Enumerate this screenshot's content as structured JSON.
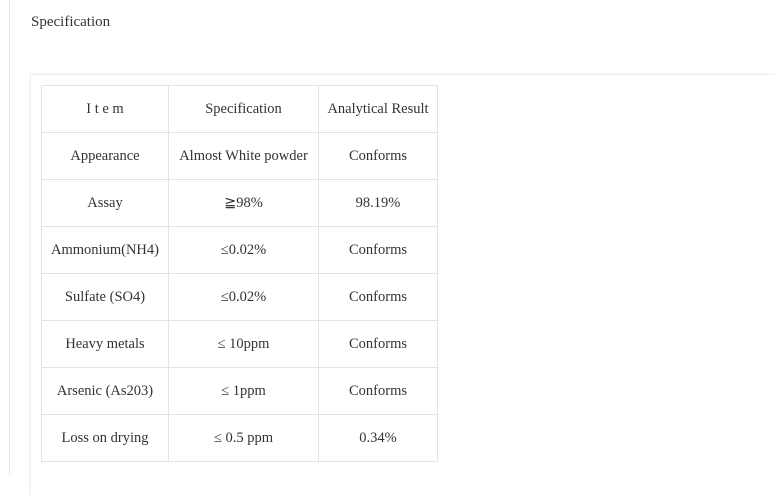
{
  "title": "Specification",
  "table": {
    "headers": [
      "I t e m",
      "Specification",
      "Analytical Result"
    ],
    "rows": [
      [
        "Appearance",
        "Almost White powder",
        "Conforms"
      ],
      [
        "Assay",
        "≧98%",
        "98.19%"
      ],
      [
        "Ammonium(NH4)",
        "≤0.02%",
        "Conforms"
      ],
      [
        "Sulfate (SO4)",
        "≤0.02%",
        "Conforms"
      ],
      [
        "Heavy metals",
        "≤ 10ppm",
        "Conforms"
      ],
      [
        "Arsenic (As203)",
        "≤ 1ppm",
        "Conforms"
      ],
      [
        "Loss on drying",
        "≤ 0.5 ppm",
        "0.34%"
      ]
    ]
  }
}
